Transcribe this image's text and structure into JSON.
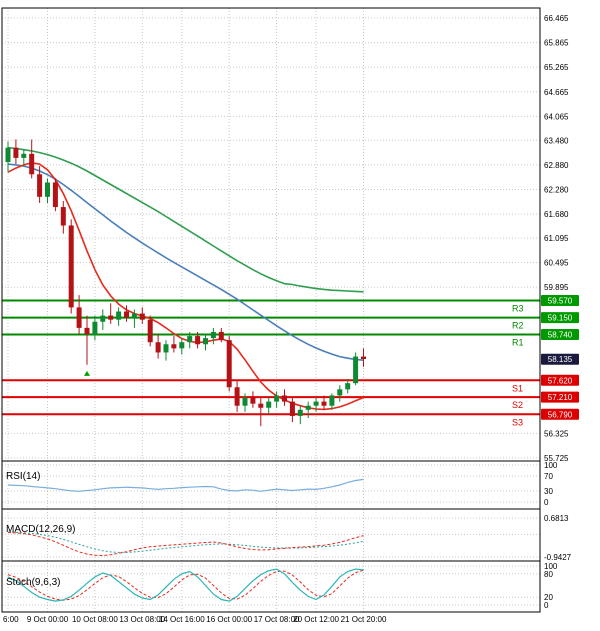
{
  "colors": {
    "bg": "#ffffff",
    "frame": "#000000",
    "grid": "#c9c9c9",
    "up": "#0e8a33",
    "down": "#b31217",
    "ma_slow_green": "#2f9e4f",
    "ma_mid_blue": "#4a7ebb",
    "ma_fast_red": "#e8291c",
    "resistance": "#008a00",
    "support": "#e00000",
    "resistance_badge": "#009900",
    "support_badge": "#dd0000",
    "current_badge": "#1a1a3e",
    "rsi_line": "#79aede",
    "macd_line": "#e8291c",
    "macd_signal": "#2aa198",
    "stoch_k": "#2ab5b5",
    "stoch_d": "#e8291c",
    "marker": "#00a000"
  },
  "axes": {
    "price_tick_labels": [
      "66.465",
      "65.865",
      "65.265",
      "64.665",
      "64.065",
      "63.480",
      "62.880",
      "62.280",
      "61.680",
      "61.095",
      "60.495",
      "59.895",
      "56.325",
      "55.725"
    ],
    "time_labels": [
      "6:00",
      "9 Oct 00:00",
      "10 Oct 08:00",
      "13 Oct 08:00",
      "14 Oct 16:00",
      "16 Oct 00:00",
      "17 Oct 08:00",
      "20 Oct 12:00",
      "21 Oct 20:00"
    ]
  },
  "levels": {
    "resistances": [
      {
        "name": "R3",
        "price_label": "59.570"
      },
      {
        "name": "R2",
        "price_label": "59.150"
      },
      {
        "name": "R1",
        "price_label": "58.740"
      }
    ],
    "supports": [
      {
        "name": "S1",
        "price_label": "57.620"
      },
      {
        "name": "S2",
        "price_label": "57.210"
      },
      {
        "name": "S3",
        "price_label": "56.790"
      }
    ],
    "current_price_label": "58.135"
  },
  "panels": {
    "rsi": {
      "title": "RSI(14)",
      "tick_labels": [
        "100",
        "70",
        "30",
        "0"
      ]
    },
    "macd": {
      "title": "MACD(12,26,9)",
      "tick_labels": [
        "0.6813",
        "-0.9427"
      ]
    },
    "stoch": {
      "title": "Stoch(9,6,3)",
      "tick_labels": [
        "100",
        "80",
        "20",
        "0"
      ]
    }
  },
  "chart_data": [
    {
      "type": "candlestick",
      "name": "price",
      "ylim": [
        55.65,
        66.71
      ],
      "x_axis_labels": [
        "6:00",
        "9 Oct 00:00",
        "10 Oct 08:00",
        "13 Oct 08:00",
        "14 Oct 16:00",
        "16 Oct 00:00",
        "17 Oct 08:00",
        "20 Oct 12:00",
        "21 Oct 20:00"
      ],
      "x_tick_indices": [
        0,
        5,
        11,
        17,
        22,
        28,
        34,
        39,
        45
      ],
      "candles": [
        [
          62.95,
          63.45,
          62.7,
          63.3
        ],
        [
          63.3,
          63.5,
          62.9,
          63.05
        ],
        [
          63.05,
          63.25,
          62.85,
          63.15
        ],
        [
          63.15,
          63.5,
          62.55,
          62.65
        ],
        [
          62.65,
          62.85,
          61.95,
          62.1
        ],
        [
          62.1,
          62.55,
          61.95,
          62.45
        ],
        [
          62.45,
          62.55,
          61.75,
          61.85
        ],
        [
          61.85,
          62.0,
          61.2,
          61.4
        ],
        [
          61.4,
          61.55,
          59.25,
          59.4
        ],
        [
          59.4,
          59.7,
          58.75,
          58.9
        ],
        [
          58.9,
          59.2,
          58.0,
          58.75
        ],
        [
          58.75,
          59.2,
          58.6,
          59.05
        ],
        [
          59.05,
          59.35,
          58.85,
          59.2
        ],
        [
          59.2,
          59.5,
          59.0,
          59.1
        ],
        [
          59.1,
          59.4,
          58.95,
          59.3
        ],
        [
          59.3,
          59.45,
          59.05,
          59.15
        ],
        [
          59.15,
          59.35,
          58.9,
          59.25
        ],
        [
          59.25,
          59.4,
          59.0,
          59.1
        ],
        [
          59.1,
          59.2,
          58.45,
          58.55
        ],
        [
          58.55,
          58.75,
          58.15,
          58.3
        ],
        [
          58.3,
          58.6,
          58.1,
          58.5
        ],
        [
          58.5,
          58.7,
          58.3,
          58.4
        ],
        [
          58.4,
          58.65,
          58.25,
          58.55
        ],
        [
          58.55,
          58.8,
          58.4,
          58.7
        ],
        [
          58.7,
          58.8,
          58.4,
          58.5
        ],
        [
          58.5,
          58.75,
          58.35,
          58.65
        ],
        [
          58.65,
          58.9,
          58.5,
          58.8
        ],
        [
          58.8,
          58.9,
          58.55,
          58.6
        ],
        [
          58.6,
          58.7,
          57.35,
          57.45
        ],
        [
          57.45,
          57.6,
          56.85,
          57.0
        ],
        [
          57.0,
          57.3,
          56.85,
          57.2
        ],
        [
          57.2,
          57.35,
          56.95,
          57.05
        ],
        [
          57.05,
          57.2,
          56.5,
          56.95
        ],
        [
          56.95,
          57.2,
          56.8,
          57.1
        ],
        [
          57.1,
          57.35,
          56.95,
          57.25
        ],
        [
          57.25,
          57.4,
          57.0,
          57.1
        ],
        [
          57.1,
          57.2,
          56.6,
          56.75
        ],
        [
          56.75,
          57.0,
          56.55,
          56.9
        ],
        [
          56.9,
          57.1,
          56.7,
          57.0
        ],
        [
          57.0,
          57.2,
          56.85,
          57.1
        ],
        [
          57.1,
          57.25,
          56.9,
          57.0
        ],
        [
          57.0,
          57.3,
          56.9,
          57.25
        ],
        [
          57.25,
          57.5,
          57.1,
          57.4
        ],
        [
          57.4,
          57.65,
          57.3,
          57.55
        ],
        [
          57.55,
          58.3,
          57.5,
          58.2
        ],
        [
          58.2,
          58.4,
          57.95,
          58.14
        ]
      ],
      "overlays": [
        {
          "name": "ma_slow_green",
          "values": [
            63.3,
            63.28,
            63.25,
            63.22,
            63.18,
            63.13,
            63.07,
            63.0,
            62.92,
            62.83,
            62.73,
            62.62,
            62.51,
            62.4,
            62.29,
            62.18,
            62.07,
            61.96,
            61.85,
            61.74,
            61.62,
            61.5,
            61.38,
            61.26,
            61.14,
            61.02,
            60.9,
            60.78,
            60.66,
            60.54,
            60.43,
            60.32,
            60.22,
            60.13,
            60.05,
            59.98,
            59.96,
            59.92,
            59.89,
            59.86,
            59.84,
            59.82,
            59.81,
            59.8,
            59.79,
            59.78
          ]
        },
        {
          "name": "ma_mid_blue",
          "values": [
            62.9,
            62.88,
            62.85,
            62.8,
            62.73,
            62.64,
            62.53,
            62.4,
            62.26,
            62.11,
            61.96,
            61.81,
            61.66,
            61.51,
            61.37,
            61.23,
            61.1,
            60.97,
            60.85,
            60.73,
            60.61,
            60.5,
            60.39,
            60.28,
            60.17,
            60.06,
            59.95,
            59.84,
            59.72,
            59.6,
            59.47,
            59.34,
            59.21,
            59.08,
            58.95,
            58.83,
            58.71,
            58.6,
            58.5,
            58.41,
            58.33,
            58.26,
            58.2,
            58.16,
            58.13,
            58.11
          ]
        },
        {
          "name": "ma_fast_red",
          "values": [
            62.7,
            62.8,
            62.88,
            62.93,
            62.9,
            62.76,
            62.52,
            62.18,
            61.76,
            61.28,
            60.78,
            60.32,
            59.95,
            59.68,
            59.48,
            59.34,
            59.25,
            59.19,
            59.13,
            59.03,
            58.9,
            58.76,
            58.64,
            58.57,
            58.54,
            58.56,
            58.6,
            58.63,
            58.57,
            58.38,
            58.12,
            57.84,
            57.58,
            57.38,
            57.24,
            57.14,
            57.06,
            57.0,
            56.95,
            56.92,
            56.91,
            56.93,
            56.97,
            57.04,
            57.12,
            57.2
          ]
        }
      ],
      "horizontal_levels": {
        "resistances": [
          59.57,
          59.15,
          58.74
        ],
        "supports": [
          57.62,
          57.21,
          56.79
        ],
        "current": 58.135
      },
      "marker": {
        "candle_index": 10,
        "price": 57.85,
        "shape": "up-triangle"
      }
    },
    {
      "type": "line",
      "name": "rsi",
      "ylim": [
        0,
        100
      ],
      "ticks": [
        100,
        70,
        30,
        0
      ],
      "values": [
        46,
        45,
        44,
        42,
        40,
        38,
        36,
        33,
        30,
        29,
        31,
        33,
        36,
        38,
        39,
        40,
        39,
        38,
        36,
        34,
        36,
        37,
        39,
        40,
        41,
        42,
        41,
        35,
        31,
        30,
        33,
        32,
        29,
        32,
        35,
        33,
        31,
        33,
        35,
        34,
        37,
        41,
        46,
        53,
        58,
        61
      ]
    },
    {
      "type": "line",
      "name": "macd",
      "ticks": [
        0.6813,
        -0.9427
      ],
      "series": [
        {
          "name": "macd",
          "values": [
            0.08,
            0.06,
            0.03,
            -0.02,
            -0.1,
            -0.19,
            -0.31,
            -0.45,
            -0.6,
            -0.73,
            -0.82,
            -0.87,
            -0.88,
            -0.85,
            -0.79,
            -0.72,
            -0.64,
            -0.57,
            -0.52,
            -0.49,
            -0.46,
            -0.44,
            -0.41,
            -0.39,
            -0.36,
            -0.34,
            -0.32,
            -0.36,
            -0.44,
            -0.52,
            -0.59,
            -0.63,
            -0.65,
            -0.64,
            -0.61,
            -0.58,
            -0.55,
            -0.53,
            -0.51,
            -0.48,
            -0.45,
            -0.4,
            -0.33,
            -0.24,
            -0.14,
            -0.05
          ]
        },
        {
          "name": "signal",
          "values": [
            0.09,
            0.08,
            0.06,
            0.04,
            0.0,
            -0.05,
            -0.12,
            -0.21,
            -0.31,
            -0.42,
            -0.52,
            -0.61,
            -0.68,
            -0.73,
            -0.75,
            -0.75,
            -0.73,
            -0.7,
            -0.66,
            -0.62,
            -0.58,
            -0.55,
            -0.52,
            -0.49,
            -0.46,
            -0.43,
            -0.41,
            -0.4,
            -0.41,
            -0.43,
            -0.46,
            -0.5,
            -0.53,
            -0.55,
            -0.57,
            -0.57,
            -0.57,
            -0.56,
            -0.55,
            -0.53,
            -0.51,
            -0.49,
            -0.45,
            -0.41,
            -0.35,
            -0.29
          ]
        }
      ]
    },
    {
      "type": "line",
      "name": "stoch",
      "ylim": [
        0,
        100
      ],
      "ticks": [
        100,
        80,
        20,
        0
      ],
      "series": [
        {
          "name": "k",
          "values": [
            72,
            62,
            48,
            32,
            20,
            14,
            10,
            13,
            22,
            38,
            56,
            72,
            82,
            76,
            60,
            44,
            28,
            18,
            14,
            26,
            46,
            66,
            80,
            86,
            72,
            50,
            28,
            14,
            10,
            22,
            42,
            62,
            78,
            88,
            92,
            80,
            58,
            38,
            22,
            14,
            26,
            48,
            72,
            86,
            92,
            90
          ]
        },
        {
          "name": "d",
          "values": [
            78,
            71,
            61,
            47,
            33,
            22,
            15,
            12,
            15,
            24,
            39,
            55,
            70,
            77,
            73,
            60,
            44,
            30,
            20,
            19,
            29,
            46,
            64,
            77,
            79,
            69,
            50,
            31,
            17,
            15,
            25,
            42,
            61,
            76,
            86,
            87,
            77,
            59,
            39,
            25,
            21,
            29,
            49,
            69,
            83,
            89
          ]
        }
      ]
    }
  ]
}
